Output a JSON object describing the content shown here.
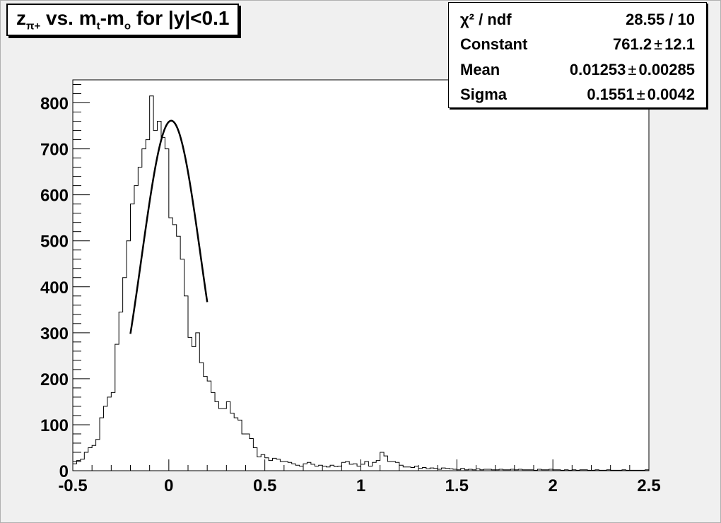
{
  "title": {
    "main": "z",
    "sub1": "π+",
    "mid": " vs. m",
    "sub2": "t",
    "dash": "-m",
    "sub3": "o",
    "tail": " for |y|<0.1"
  },
  "stats": {
    "chi2_label": "χ² / ndf",
    "chi2_value": "28.55 / 10",
    "constant_label": "Constant",
    "constant_value": "761.2",
    "constant_error": "12.1",
    "mean_label": "Mean",
    "mean_value": "0.01253",
    "mean_error": "0.00285",
    "sigma_label": "Sigma",
    "sigma_value": "0.1551",
    "sigma_error": "0.0042",
    "pm_symbol": "±"
  },
  "colors": {
    "background": "#f0f0f0",
    "frame": "#ffffff",
    "histogram": "#000000",
    "fit": "#000000"
  },
  "chart_data": {
    "type": "histogram",
    "title": "zπ+ vs. mt-mo for |y|<0.1",
    "xlabel": "",
    "ylabel": "",
    "xlim": [
      -0.5,
      2.5
    ],
    "ylim": [
      0,
      850
    ],
    "x_ticks": [
      -0.5,
      0,
      0.5,
      1,
      1.5,
      2,
      2.5
    ],
    "x_tick_labels": [
      "-0.5",
      "0",
      "0.5",
      "1",
      "1.5",
      "2",
      "2.5"
    ],
    "y_ticks": [
      0,
      100,
      200,
      300,
      400,
      500,
      600,
      700,
      800
    ],
    "y_tick_labels": [
      "0",
      "100",
      "200",
      "300",
      "400",
      "500",
      "600",
      "700",
      "800"
    ],
    "bin_width": 0.02,
    "bin_start": -0.5,
    "counts": [
      15,
      22,
      25,
      40,
      50,
      55,
      68,
      115,
      140,
      160,
      170,
      275,
      345,
      420,
      500,
      580,
      620,
      660,
      700,
      720,
      815,
      740,
      760,
      725,
      700,
      550,
      535,
      510,
      460,
      380,
      290,
      270,
      300,
      235,
      205,
      195,
      170,
      150,
      135,
      135,
      150,
      125,
      115,
      110,
      80,
      80,
      70,
      50,
      30,
      35,
      28,
      22,
      27,
      25,
      20,
      20,
      18,
      15,
      12,
      10,
      15,
      18,
      14,
      10,
      12,
      10,
      8,
      12,
      9,
      10,
      18,
      20,
      14,
      15,
      10,
      14,
      20,
      10,
      18,
      22,
      40,
      32,
      20,
      20,
      18,
      12,
      8,
      8,
      7,
      10,
      5,
      7,
      4,
      6,
      5,
      3,
      6,
      5,
      4,
      3,
      2,
      5,
      2,
      3,
      2,
      4,
      2,
      3,
      3,
      2,
      2,
      3,
      2,
      2,
      3,
      2,
      3,
      2,
      2,
      2,
      1,
      3,
      2,
      2,
      3,
      2,
      2,
      1,
      2,
      1,
      2,
      1,
      2,
      2,
      1,
      1,
      2,
      1,
      1,
      2,
      1,
      1,
      1,
      2,
      1,
      1,
      1,
      1,
      1,
      2
    ],
    "fit": {
      "function": "gaus",
      "constant": 761.2,
      "mean": 0.01253,
      "sigma": 0.1551,
      "range": [
        -0.2,
        0.2
      ]
    },
    "grid": false,
    "legend": "top-right"
  }
}
